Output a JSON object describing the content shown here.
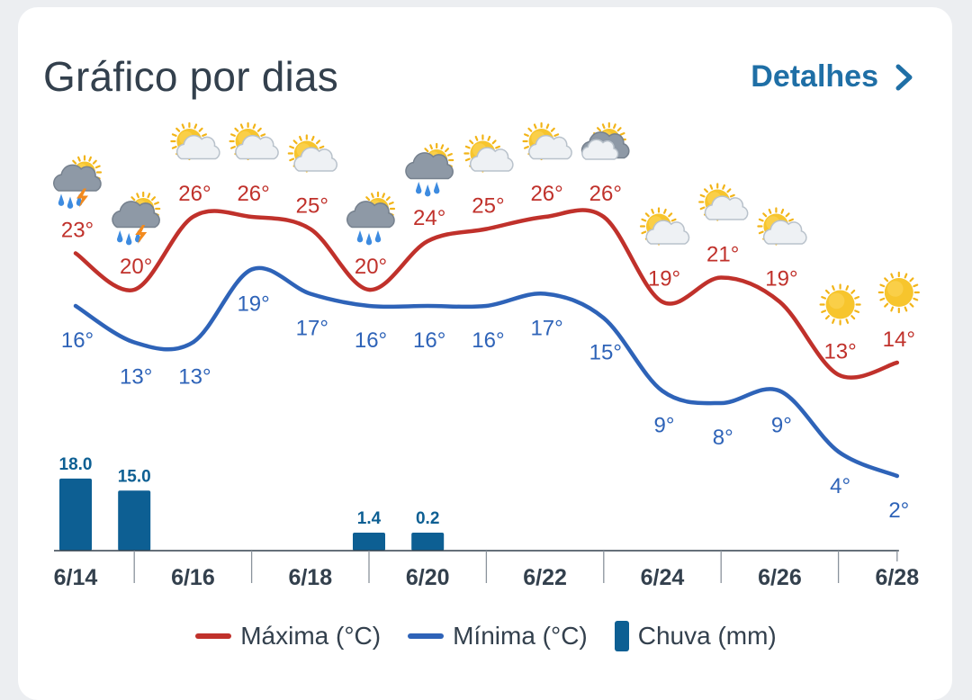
{
  "header": {
    "title": "Gráfico por dias",
    "details_label": "Detalhes",
    "details_icon": "chevron-right-icon"
  },
  "colors": {
    "max": "#c0312b",
    "min": "#2e63b8",
    "rain": "#0d5f93",
    "axis": "#33404d",
    "accent": "#1f6fa6"
  },
  "chart_data": {
    "type": "line",
    "x_ticks": [
      "6/14",
      "6/16",
      "6/18",
      "6/20",
      "6/22",
      "6/24",
      "6/26",
      "6/28"
    ],
    "days": [
      {
        "date": "6/14",
        "max": 23,
        "min": 16,
        "rain": 18.0,
        "icon": "thunderstorm-icon"
      },
      {
        "date": "6/15",
        "max": 20,
        "min": 13,
        "rain": 15.0,
        "icon": "thunderstorm-icon"
      },
      {
        "date": "6/16",
        "max": 26,
        "min": 13,
        "rain": null,
        "icon": "partly-cloudy-icon"
      },
      {
        "date": "6/17",
        "max": 26,
        "min": 19,
        "rain": null,
        "icon": "partly-cloudy-icon"
      },
      {
        "date": "6/18",
        "max": 25,
        "min": 17,
        "rain": null,
        "icon": "partly-cloudy-icon"
      },
      {
        "date": "6/19",
        "max": 20,
        "min": 16,
        "rain": 1.4,
        "icon": "rain-icon"
      },
      {
        "date": "6/20",
        "max": 24,
        "min": 16,
        "rain": 0.2,
        "icon": "rain-icon"
      },
      {
        "date": "6/21",
        "max": 25,
        "min": 16,
        "rain": null,
        "icon": "partly-cloudy-icon"
      },
      {
        "date": "6/22",
        "max": 26,
        "min": 17,
        "rain": null,
        "icon": "partly-cloudy-icon"
      },
      {
        "date": "6/23",
        "max": 26,
        "min": 15,
        "rain": null,
        "icon": "cloudy-icon"
      },
      {
        "date": "6/24",
        "max": 19,
        "min": 9,
        "rain": null,
        "icon": "partly-cloudy-icon"
      },
      {
        "date": "6/25",
        "max": 21,
        "min": 8,
        "rain": null,
        "icon": "partly-cloudy-icon"
      },
      {
        "date": "6/26",
        "max": 19,
        "min": 9,
        "rain": null,
        "icon": "partly-cloudy-icon"
      },
      {
        "date": "6/27",
        "max": 13,
        "min": 4,
        "rain": null,
        "icon": "sunny-icon"
      },
      {
        "date": "6/28",
        "max": 14,
        "min": 2,
        "rain": null,
        "icon": "sunny-icon"
      }
    ],
    "legend": [
      "Máxima (°C)",
      "Mínima (°C)",
      "Chuva (mm)"
    ],
    "legend_position": "bottom",
    "grid": false
  }
}
